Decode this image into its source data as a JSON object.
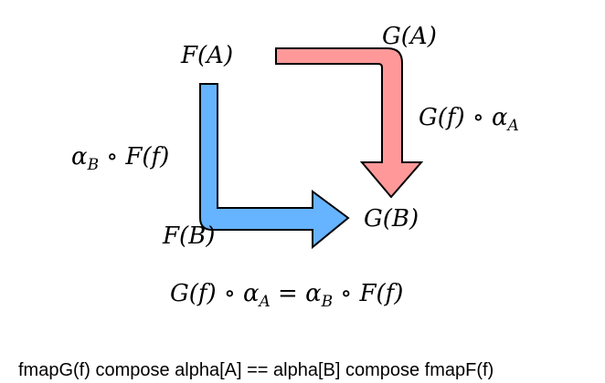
{
  "diagram": {
    "nodes": {
      "fa": "F(A)",
      "ga": "G(A)",
      "fb": "F(B)",
      "gb": "G(B)"
    },
    "edges": {
      "right_path": "G(f) ∘ α",
      "right_path_sub": "A",
      "left_path": "α",
      "left_path_sub": "B",
      "left_path_rest": " ∘ F(f)"
    },
    "equation": {
      "lhs": "G(f) ∘ α",
      "lhs_sub": "A",
      "mid": " = α",
      "mid_sub": "B",
      "rhs": " ∘ F(f)"
    },
    "caption": "fmapG(f) compose alpha[A] == alpha[B] compose fmapF(f)",
    "colors": {
      "red_arrow": "#ff9999",
      "blue_arrow": "#66b3ff",
      "outline": "#000000"
    }
  }
}
